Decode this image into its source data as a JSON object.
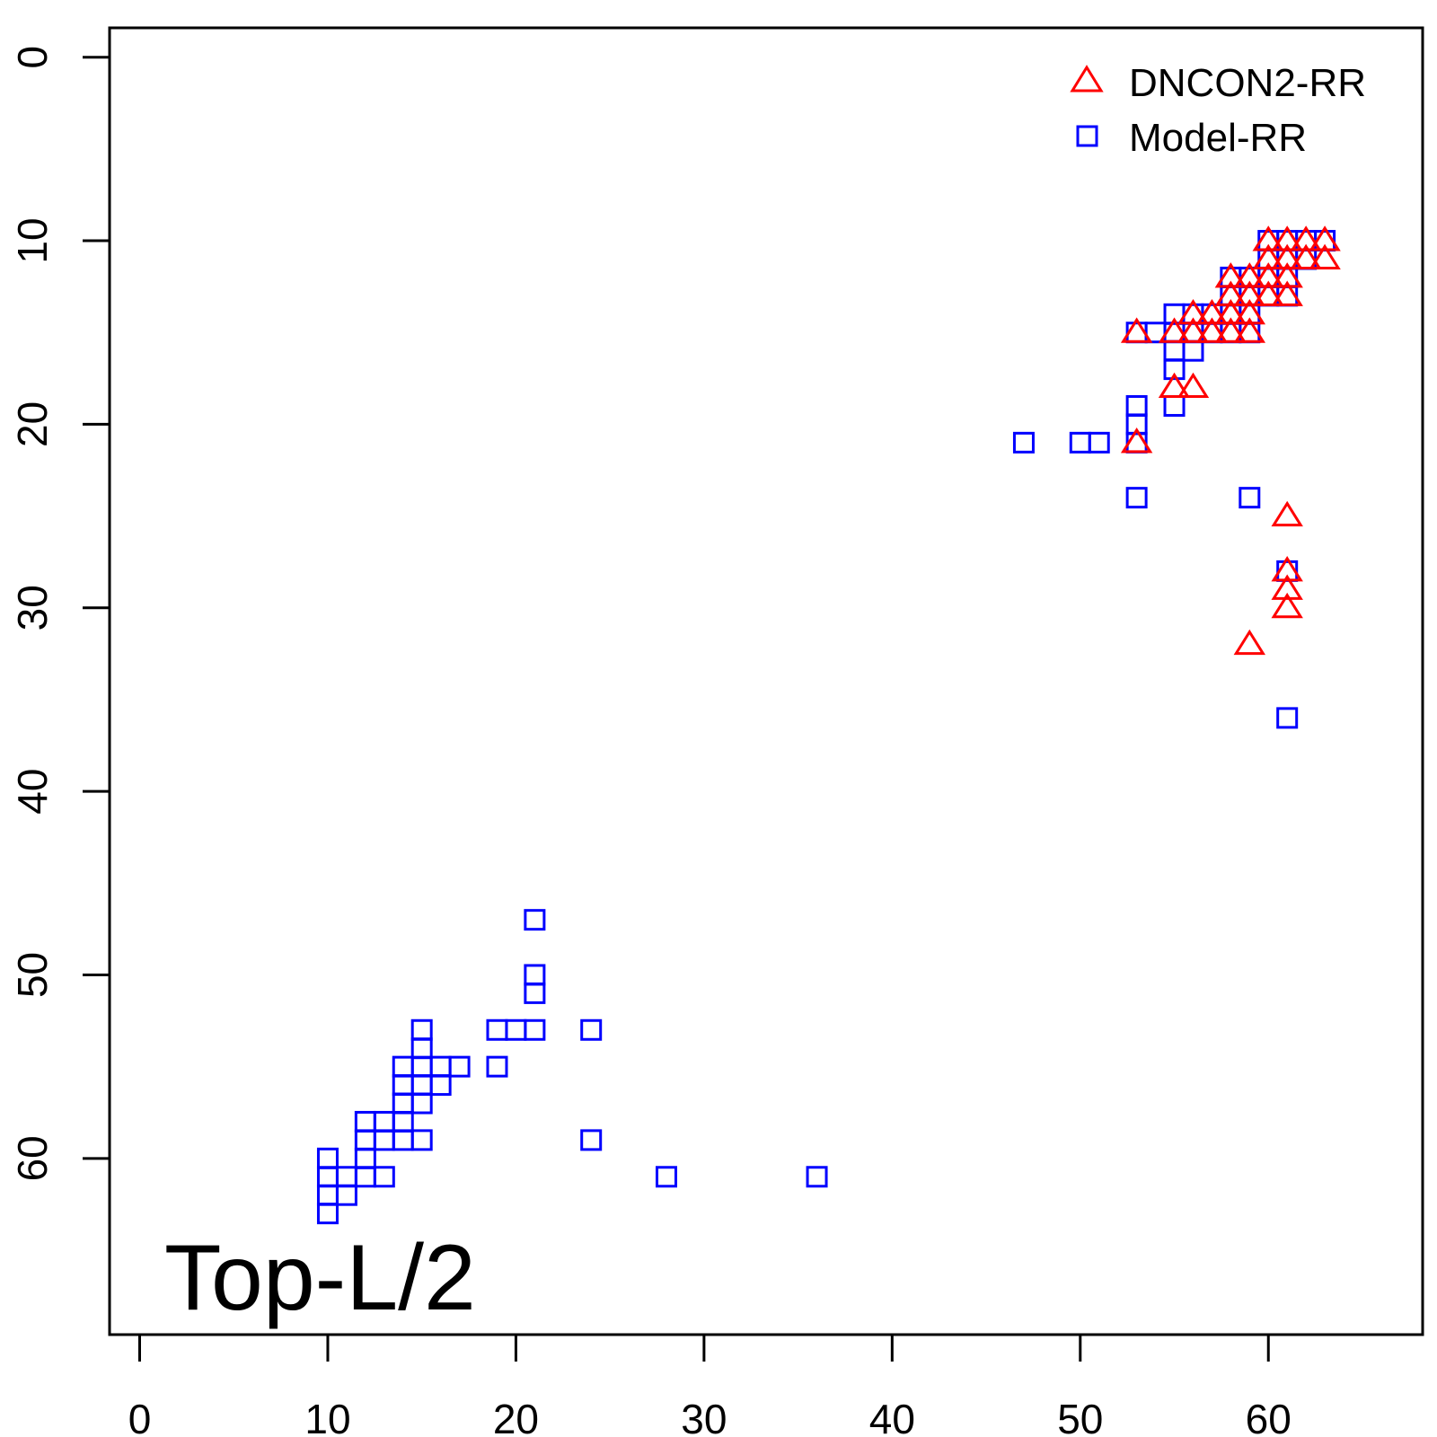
{
  "chart_data": {
    "type": "scatter",
    "title": "",
    "xlabel": "",
    "ylabel": "",
    "xlim": [
      -1.6,
      68.2
    ],
    "ylim": [
      -1.6,
      69.6
    ],
    "y_reversed": true,
    "x_ticks": [
      "0",
      "10",
      "20",
      "30",
      "40",
      "50",
      "60"
    ],
    "y_ticks": [
      "0",
      "10",
      "20",
      "30",
      "40",
      "50",
      "60"
    ],
    "annotation": "Top-L/2",
    "legend_position": "top-right",
    "colors": {
      "dncon2": "#ff0000",
      "model": "#0000ff",
      "axes": "#000000"
    },
    "series": [
      {
        "name": "Model-RR",
        "marker": "square",
        "color": "#0000ff",
        "points": [
          [
            10,
            60
          ],
          [
            10,
            61
          ],
          [
            10,
            62
          ],
          [
            10,
            63
          ],
          [
            11,
            61
          ],
          [
            11,
            62
          ],
          [
            12,
            58
          ],
          [
            12,
            59
          ],
          [
            12,
            60
          ],
          [
            12,
            61
          ],
          [
            13,
            58
          ],
          [
            13,
            59
          ],
          [
            13,
            61
          ],
          [
            14,
            55
          ],
          [
            14,
            56
          ],
          [
            14,
            57
          ],
          [
            14,
            58
          ],
          [
            14,
            59
          ],
          [
            15,
            53
          ],
          [
            15,
            54
          ],
          [
            15,
            55
          ],
          [
            15,
            56
          ],
          [
            15,
            57
          ],
          [
            15,
            59
          ],
          [
            16,
            55
          ],
          [
            16,
            56
          ],
          [
            17,
            55
          ],
          [
            19,
            53
          ],
          [
            19,
            55
          ],
          [
            20,
            53
          ],
          [
            21,
            47
          ],
          [
            21,
            50
          ],
          [
            21,
            51
          ],
          [
            21,
            53
          ],
          [
            24,
            53
          ],
          [
            24,
            59
          ],
          [
            28,
            61
          ],
          [
            36,
            61
          ],
          [
            47,
            21
          ],
          [
            50,
            21
          ],
          [
            51,
            21
          ],
          [
            53,
            15
          ],
          [
            53,
            19
          ],
          [
            53,
            20
          ],
          [
            53,
            21
          ],
          [
            53,
            24
          ],
          [
            54,
            15
          ],
          [
            55,
            14
          ],
          [
            55,
            15
          ],
          [
            55,
            16
          ],
          [
            55,
            17
          ],
          [
            55,
            19
          ],
          [
            56,
            14
          ],
          [
            56,
            15
          ],
          [
            56,
            16
          ],
          [
            57,
            14
          ],
          [
            57,
            15
          ],
          [
            58,
            12
          ],
          [
            58,
            13
          ],
          [
            58,
            14
          ],
          [
            58,
            15
          ],
          [
            59,
            12
          ],
          [
            59,
            13
          ],
          [
            59,
            14
          ],
          [
            59,
            15
          ],
          [
            59,
            24
          ],
          [
            60,
            10
          ],
          [
            60,
            11
          ],
          [
            60,
            12
          ],
          [
            60,
            13
          ],
          [
            61,
            10
          ],
          [
            61,
            11
          ],
          [
            61,
            12
          ],
          [
            61,
            13
          ],
          [
            61,
            28
          ],
          [
            61,
            36
          ],
          [
            62,
            10
          ],
          [
            62,
            11
          ],
          [
            63,
            10
          ]
        ]
      },
      {
        "name": "DNCON2-RR",
        "marker": "triangle",
        "color": "#ff0000",
        "points": [
          [
            53,
            15
          ],
          [
            53,
            21
          ],
          [
            55,
            15
          ],
          [
            55,
            18
          ],
          [
            56,
            14
          ],
          [
            56,
            15
          ],
          [
            56,
            18
          ],
          [
            57,
            14
          ],
          [
            57,
            15
          ],
          [
            58,
            12
          ],
          [
            58,
            13
          ],
          [
            58,
            14
          ],
          [
            58,
            15
          ],
          [
            59,
            12
          ],
          [
            59,
            13
          ],
          [
            59,
            14
          ],
          [
            59,
            15
          ],
          [
            59,
            32
          ],
          [
            60,
            10
          ],
          [
            60,
            11
          ],
          [
            60,
            12
          ],
          [
            60,
            13
          ],
          [
            61,
            10
          ],
          [
            61,
            11
          ],
          [
            61,
            12
          ],
          [
            61,
            13
          ],
          [
            61,
            25
          ],
          [
            61,
            28
          ],
          [
            61,
            29
          ],
          [
            61,
            30
          ],
          [
            62,
            10
          ],
          [
            62,
            11
          ],
          [
            63,
            10
          ],
          [
            63,
            11
          ]
        ]
      }
    ]
  }
}
